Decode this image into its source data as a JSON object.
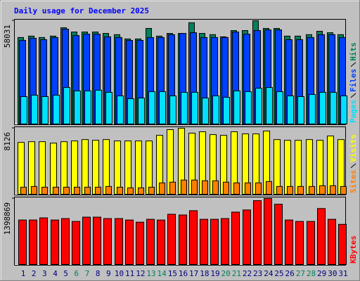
{
  "chart_data": [
    {
      "type": "bar",
      "title": "Daily usage for December 2025",
      "ylim": [
        0,
        58031
      ],
      "yticks": [
        58031
      ],
      "series": [
        {
          "name": "Hits",
          "color": "#00805c",
          "values": [
            48600,
            49400,
            48600,
            49400,
            54100,
            51700,
            51700,
            51700,
            50900,
            50200,
            47800,
            47800,
            53700,
            49400,
            50900,
            50900,
            56900,
            50900,
            50200,
            49000,
            52500,
            52500,
            58031,
            53700,
            53700,
            49400,
            49400,
            50200,
            52100,
            51300,
            50200
          ]
        },
        {
          "name": "Files",
          "color": "#0040ff",
          "values": [
            47000,
            48200,
            47400,
            48600,
            53300,
            49700,
            50500,
            50500,
            49000,
            48600,
            47000,
            47000,
            48600,
            48600,
            50200,
            50900,
            51300,
            48600,
            48600,
            48600,
            51700,
            50500,
            52500,
            52900,
            52900,
            47400,
            47400,
            48600,
            50200,
            50200,
            48600
          ]
        },
        {
          "name": "Pages",
          "color": "#00e0ff",
          "values": [
            15400,
            16200,
            15400,
            16200,
            20500,
            18600,
            18600,
            19000,
            17800,
            15800,
            14200,
            14600,
            18200,
            18200,
            15800,
            17800,
            17800,
            14600,
            15800,
            15000,
            18600,
            18200,
            20100,
            20500,
            18200,
            15800,
            15400,
            16600,
            17800,
            17800,
            15800
          ]
        }
      ]
    },
    {
      "type": "bar",
      "ylim": [
        0,
        8126
      ],
      "yticks": [
        8126
      ],
      "series": [
        {
          "name": "Visits",
          "color": "#ffff00",
          "values": [
            6380,
            6470,
            6470,
            6290,
            6470,
            6560,
            6730,
            6640,
            6730,
            6560,
            6560,
            6560,
            6560,
            7250,
            7950,
            8126,
            7520,
            7690,
            7340,
            7250,
            7690,
            7430,
            7430,
            7780,
            6730,
            6640,
            6640,
            6730,
            6640,
            7170,
            6730
          ]
        },
        {
          "name": "Sites",
          "color": "#ff8000",
          "values": [
            870,
            960,
            870,
            870,
            870,
            870,
            870,
            870,
            960,
            870,
            790,
            790,
            870,
            1400,
            1490,
            1750,
            1750,
            1660,
            1660,
            1490,
            1400,
            1400,
            1400,
            1570,
            960,
            960,
            960,
            960,
            1050,
            1050,
            960
          ]
        }
      ]
    },
    {
      "type": "bar",
      "ylim": [
        0,
        1398869
      ],
      "yticks": [
        1398869
      ],
      "categories": [
        "1",
        "2",
        "3",
        "4",
        "5",
        "6",
        "7",
        "8",
        "9",
        "10",
        "11",
        "12",
        "13",
        "14",
        "15",
        "16",
        "17",
        "18",
        "19",
        "20",
        "21",
        "22",
        "23",
        "24",
        "25",
        "26",
        "27",
        "28",
        "29",
        "30",
        "31"
      ],
      "category_colors": [
        "#000080",
        "#000080",
        "#000080",
        "#000080",
        "#000080",
        "#00805c",
        "#00805c",
        "#000080",
        "#000080",
        "#000080",
        "#000080",
        "#000080",
        "#00805c",
        "#00805c",
        "#000080",
        "#000080",
        "#000080",
        "#000080",
        "#000080",
        "#00805c",
        "#00805c",
        "#000080",
        "#000080",
        "#000080",
        "#000080",
        "#000080",
        "#00805c",
        "#00805c",
        "#000080",
        "#000080",
        "#000080"
      ],
      "series": [
        {
          "name": "KBytes",
          "color": "#ff0000",
          "values": [
            942700,
            942700,
            988300,
            942700,
            973100,
            912300,
            1003500,
            1003500,
            973100,
            973100,
            942700,
            897100,
            957900,
            942700,
            1064400,
            1049100,
            1140400,
            957900,
            957900,
            973100,
            1110000,
            1155600,
            1353200,
            1398869,
            1277200,
            942700,
            912300,
            912300,
            1186000,
            957900,
            851500
          ]
        }
      ]
    }
  ]
}
